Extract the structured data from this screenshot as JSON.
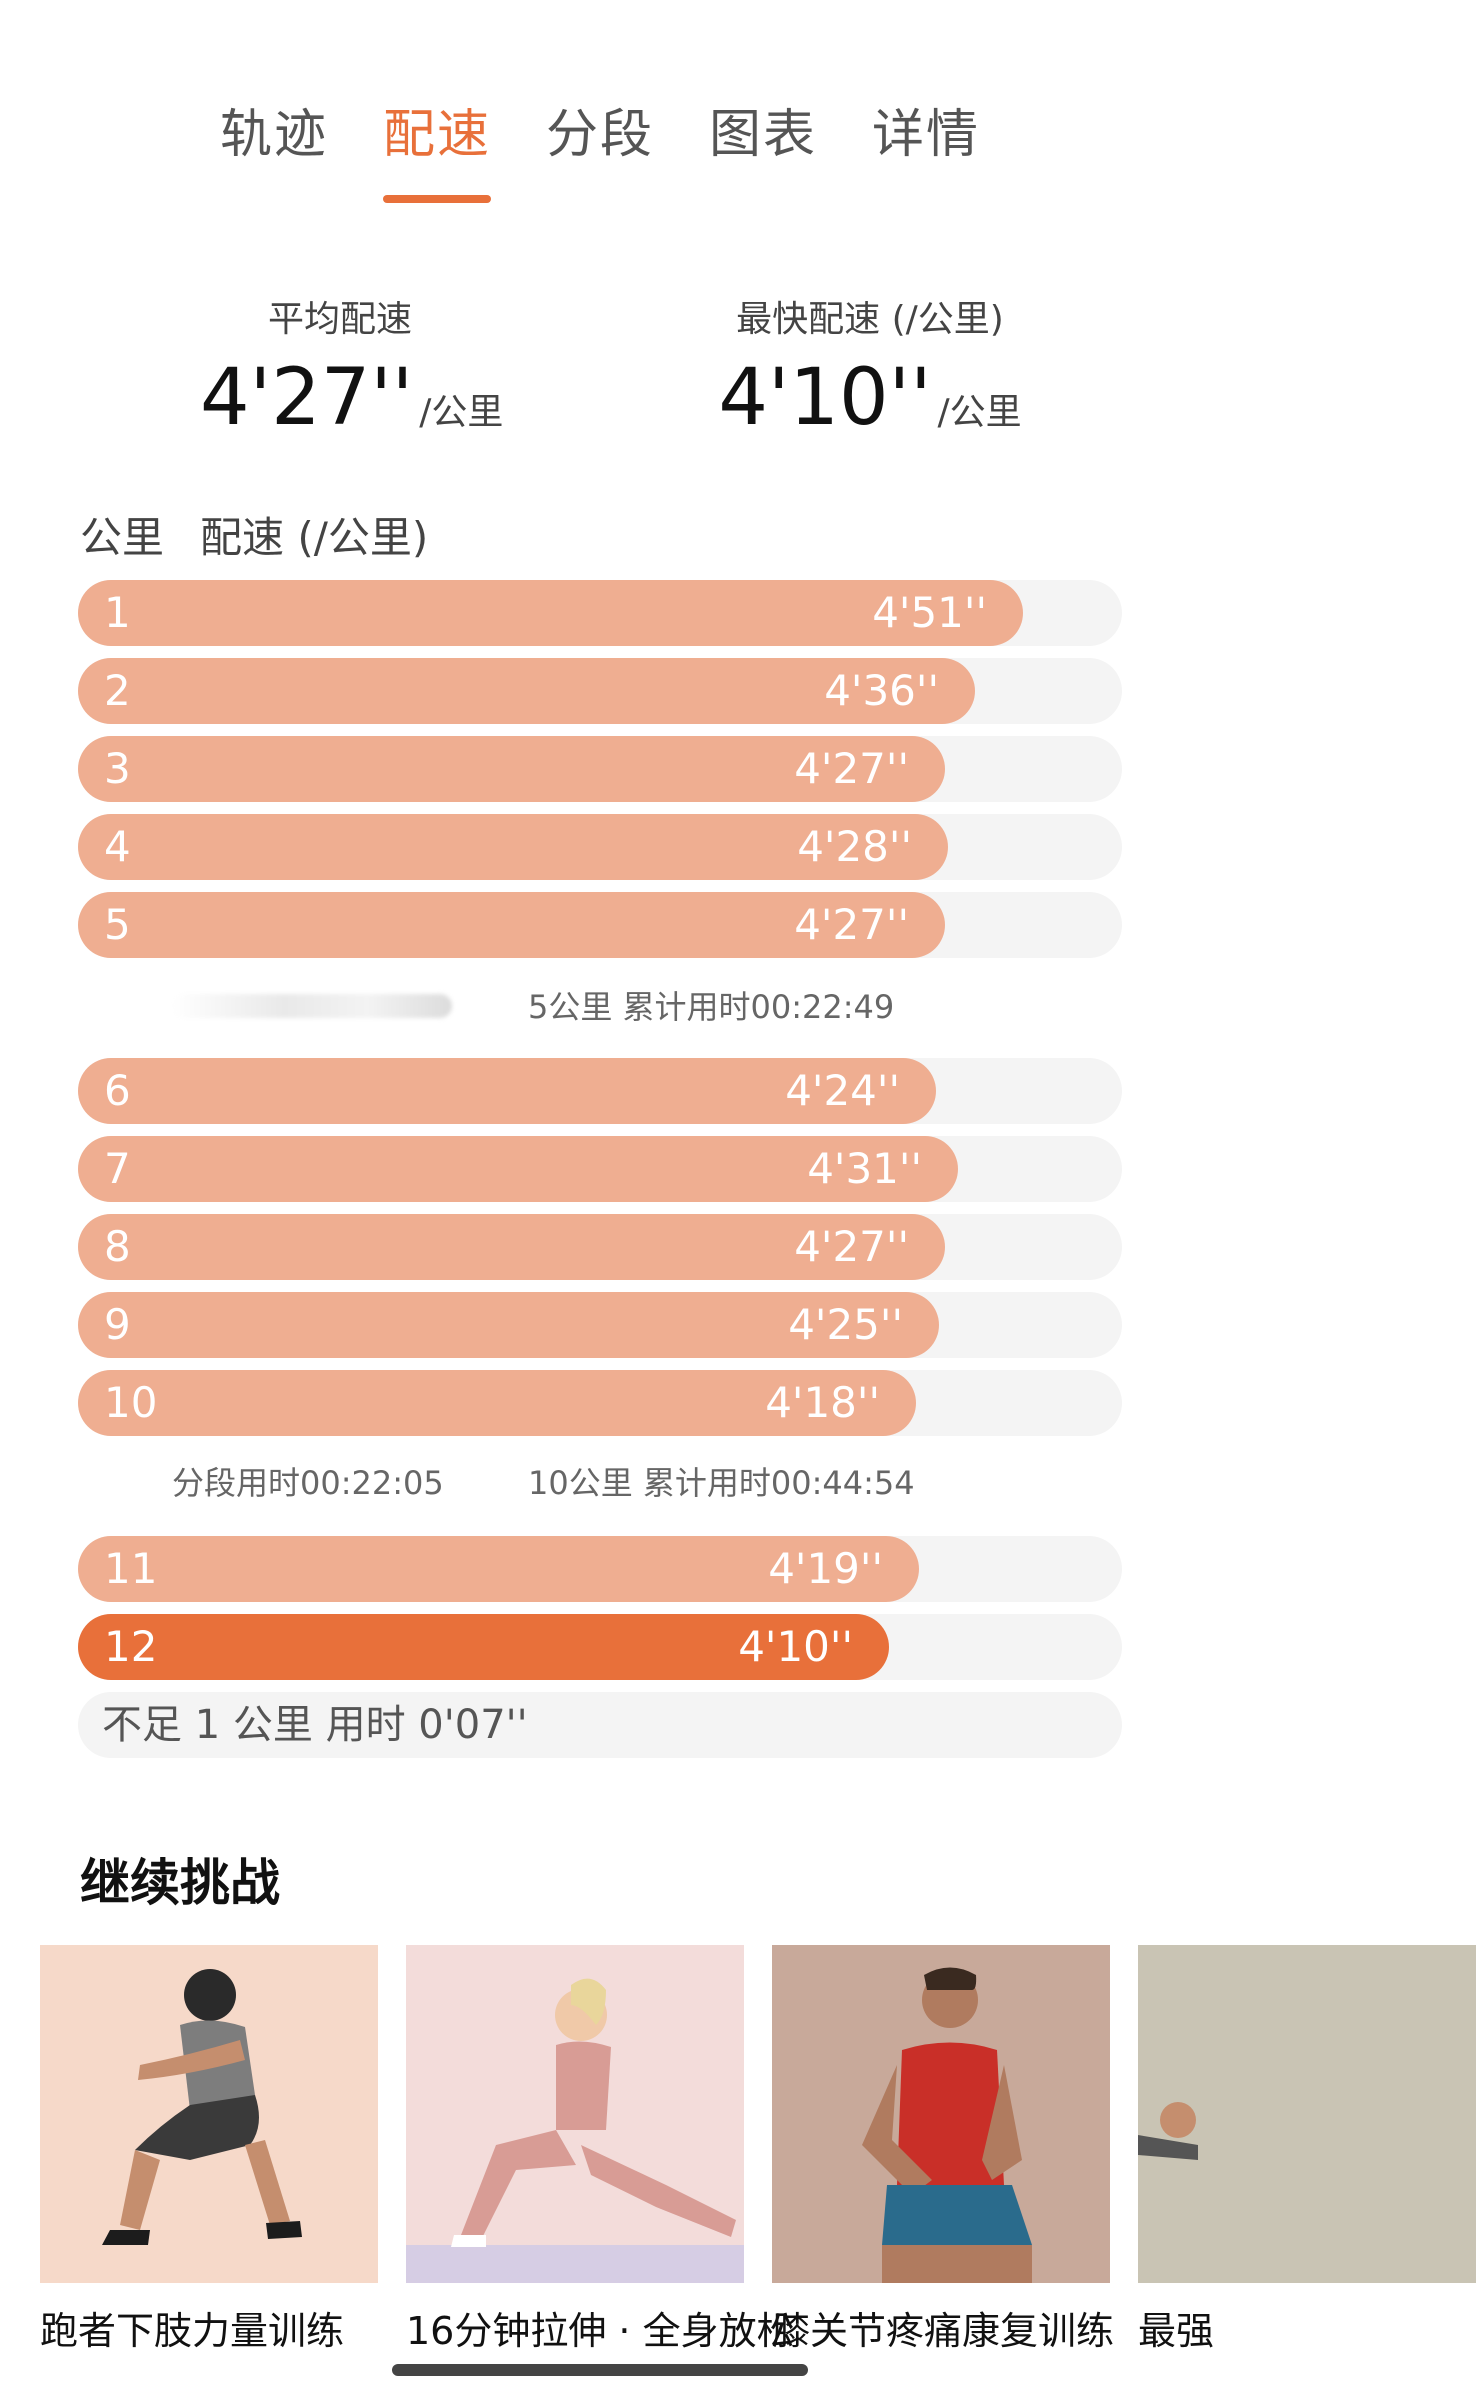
{
  "tabs": [
    {
      "label": "轨迹",
      "active": false
    },
    {
      "label": "配速",
      "active": true
    },
    {
      "label": "分段",
      "active": false
    },
    {
      "label": "图表",
      "active": false
    },
    {
      "label": "详情",
      "active": false
    }
  ],
  "summary": {
    "avg_label": "平均配速",
    "avg_value": "4'27''",
    "fast_label": "最快配速 (/公里)",
    "fast_value": "4'10''",
    "unit": "/公里"
  },
  "table_header": {
    "km": "公里",
    "pace": "配速 (/公里)"
  },
  "splits": [
    {
      "km": "1",
      "pace": "4'51''",
      "fraction": 0.905
    },
    {
      "km": "2",
      "pace": "4'36''",
      "fraction": 0.859
    },
    {
      "km": "3",
      "pace": "4'27''",
      "fraction": 0.83
    },
    {
      "km": "4",
      "pace": "4'28''",
      "fraction": 0.833
    },
    {
      "km": "5",
      "pace": "4'27''",
      "fraction": 0.83
    },
    {
      "km": "6",
      "pace": "4'24''",
      "fraction": 0.822
    },
    {
      "km": "7",
      "pace": "4'31''",
      "fraction": 0.843
    },
    {
      "km": "8",
      "pace": "4'27''",
      "fraction": 0.83
    },
    {
      "km": "9",
      "pace": "4'25''",
      "fraction": 0.825
    },
    {
      "km": "10",
      "pace": "4'18''",
      "fraction": 0.803
    },
    {
      "km": "11",
      "pace": "4'19''",
      "fraction": 0.806
    },
    {
      "km": "12",
      "pace": "4'10''",
      "fraction": 0.777,
      "highlight": true
    }
  ],
  "split_info_5": {
    "cumulative": "5公里  累计用时00:22:49"
  },
  "split_info_10": {
    "segment": "分段用时00:22:05",
    "cumulative": "10公里  累计用时00:44:54"
  },
  "remainder": "不足 1 公里  用时 0'07''",
  "continue": {
    "title": "继续挑战",
    "cards": [
      {
        "title": "跑者下肢力量训练",
        "bg": "#f6d9c9"
      },
      {
        "title": "16分钟拉伸 · 全身放松",
        "bg": "#f3dcda"
      },
      {
        "title": "膝关节疼痛康复训练",
        "bg": "#c8a99a"
      },
      {
        "title": "最强",
        "bg": "#c9c4b4"
      }
    ]
  },
  "colors": {
    "accent": "#e8703a",
    "bar": "#efae91",
    "track": "#f4f4f4"
  }
}
